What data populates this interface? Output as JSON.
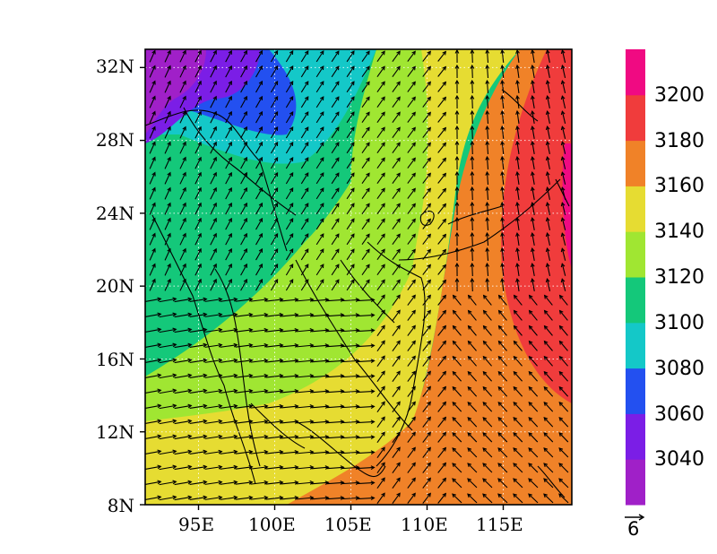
{
  "chart_data": {
    "type": "heatmap",
    "description_of_fields": "Filled geopotential height contours with wind vectors over SE Asia / South China",
    "x_ticks": [
      "95E",
      "100E",
      "105E",
      "110E",
      "115E"
    ],
    "y_ticks": [
      "8N",
      "12N",
      "16N",
      "20N",
      "24N",
      "28N",
      "32N"
    ],
    "lon_range": [
      91.5,
      119.5
    ],
    "lat_range": [
      8,
      33
    ],
    "colorbar": {
      "levels": [
        "3040",
        "3060",
        "3080",
        "3100",
        "3120",
        "3140",
        "3160",
        "3180",
        "3200"
      ],
      "colors": [
        "#a020c8",
        "#7b1ee6",
        "#2350f0",
        "#14c8c8",
        "#14c87a",
        "#a0e632",
        "#e6dc32",
        "#f08228",
        "#f03c3c",
        "#f00a82"
      ]
    },
    "reference_vector_label": "6",
    "grid": "dotted"
  }
}
